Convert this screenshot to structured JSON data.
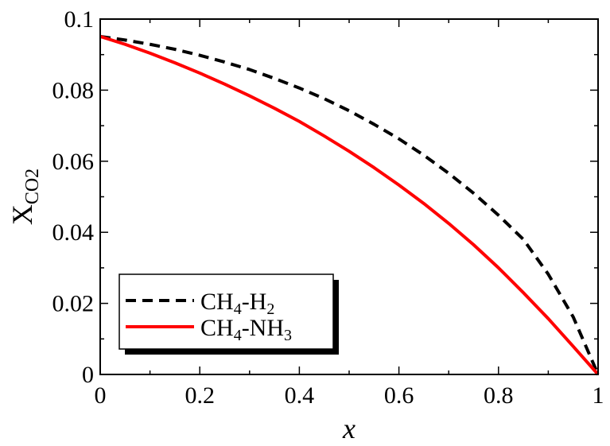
{
  "chart_data": {
    "type": "line",
    "title": "",
    "xlabel": "x",
    "ylabel": {
      "main": "X",
      "sub": "CO2"
    },
    "xlim": [
      0,
      1
    ],
    "ylim": [
      0,
      0.1
    ],
    "xticks": [
      0,
      0.2,
      0.4,
      0.6,
      0.8,
      1
    ],
    "xtick_labels": [
      "0",
      "0.2",
      "0.4",
      "0.6",
      "0.8",
      "1"
    ],
    "yticks": [
      0,
      0.02,
      0.04,
      0.06,
      0.08,
      0.1
    ],
    "ytick_labels": [
      "0",
      "0.02",
      "0.04",
      "0.06",
      "0.08",
      "0.1"
    ],
    "grid": false,
    "legend_position": "bottom-left",
    "series": [
      {
        "name": "CH4-H2",
        "legend": {
          "a": "CH",
          "a_sub": "4",
          "b": "-H",
          "b_sub": "2"
        },
        "color": "#000000",
        "style": "dashed",
        "x": [
          0,
          0.05,
          0.1,
          0.15,
          0.2,
          0.25,
          0.3,
          0.35,
          0.4,
          0.45,
          0.5,
          0.55,
          0.6,
          0.65,
          0.7,
          0.75,
          0.8,
          0.85,
          0.9,
          0.95,
          1.0
        ],
        "y": [
          0.0951,
          0.0941,
          0.0929,
          0.0915,
          0.0898,
          0.0879,
          0.0858,
          0.0833,
          0.0806,
          0.0776,
          0.0742,
          0.0704,
          0.0663,
          0.0617,
          0.0566,
          0.051,
          0.0448,
          0.038,
          0.0282,
          0.0162,
          0.0
        ]
      },
      {
        "name": "CH4-NH3",
        "legend": {
          "a": "CH",
          "a_sub": "4",
          "b": "-NH",
          "b_sub": "3"
        },
        "color": "#ff0000",
        "style": "solid",
        "x": [
          0,
          0.05,
          0.1,
          0.15,
          0.2,
          0.25,
          0.3,
          0.35,
          0.4,
          0.45,
          0.5,
          0.55,
          0.6,
          0.65,
          0.7,
          0.75,
          0.8,
          0.85,
          0.9,
          0.95,
          1.0
        ],
        "y": [
          0.0951,
          0.0929,
          0.0904,
          0.0877,
          0.0848,
          0.0817,
          0.0784,
          0.0749,
          0.0712,
          0.0671,
          0.0628,
          0.0582,
          0.0533,
          0.0481,
          0.0425,
          0.0365,
          0.03,
          0.023,
          0.0157,
          0.0079,
          0.0
        ]
      }
    ]
  }
}
